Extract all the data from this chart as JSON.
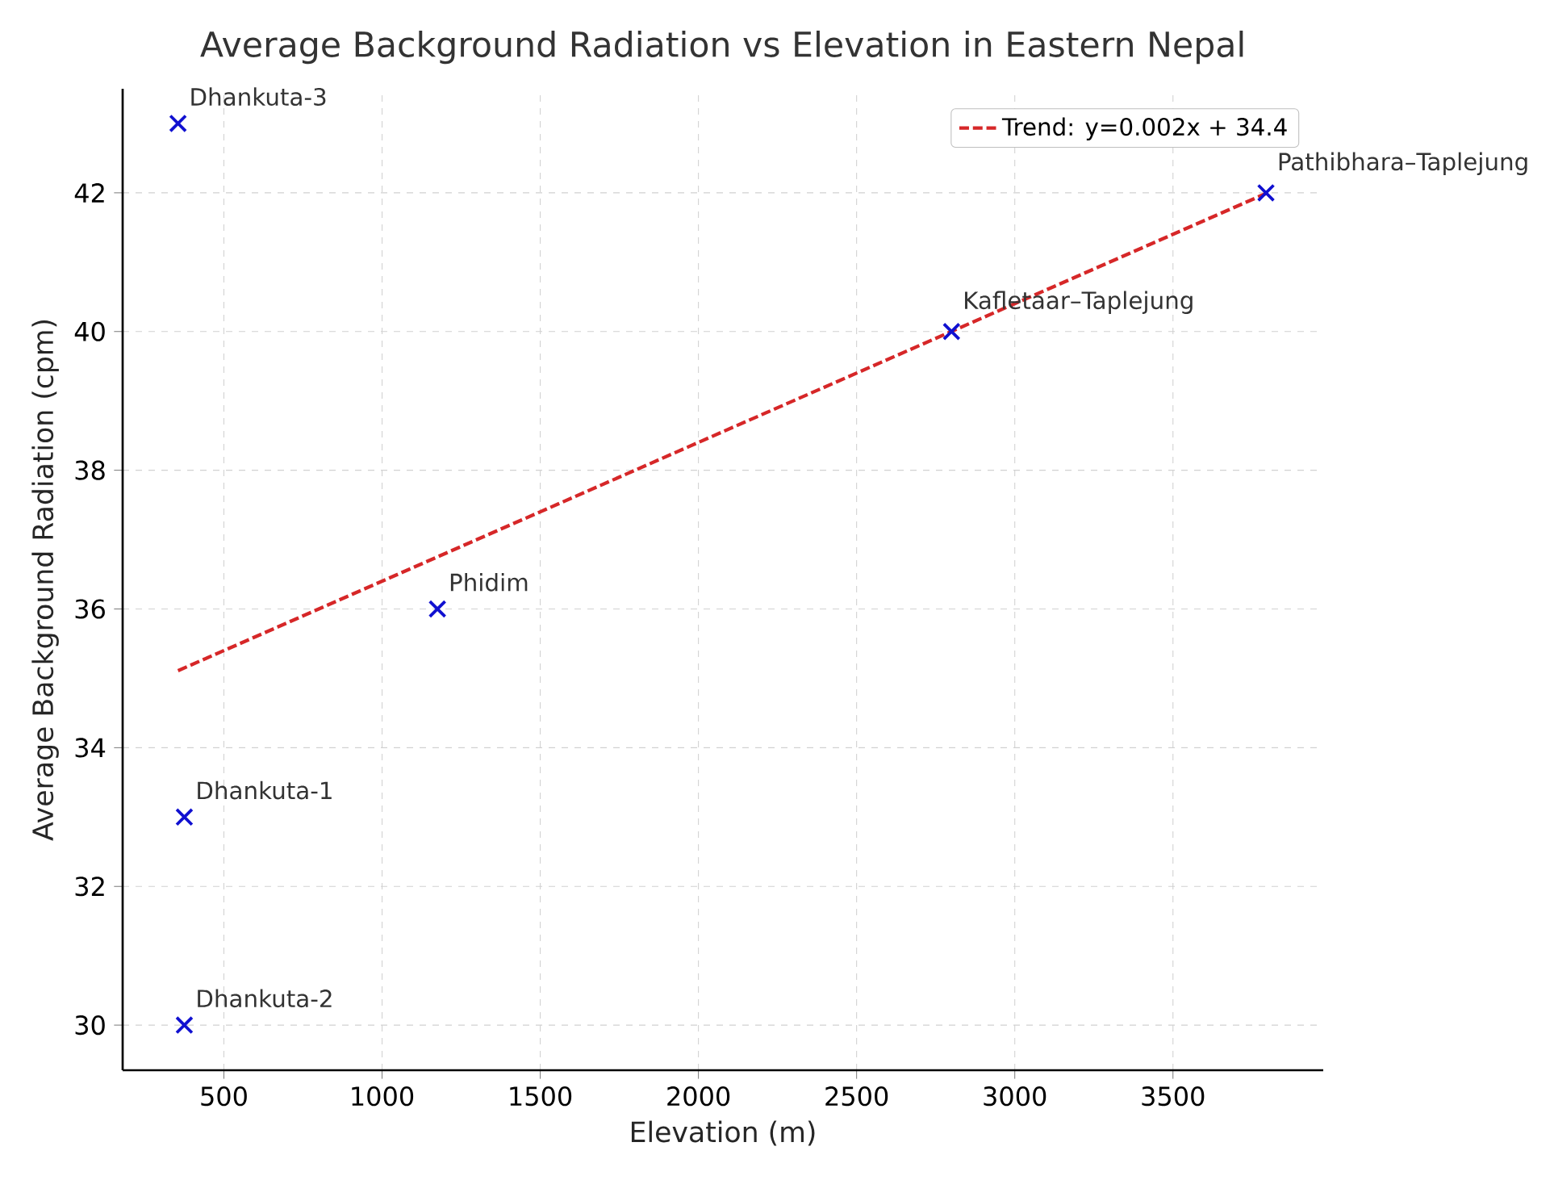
{
  "chart_data": {
    "type": "scatter",
    "title": "Average Background Radiation vs Elevation in Eastern Nepal",
    "xlabel": "Elevation (m)",
    "ylabel": "Average Background Radiation (cpm)",
    "xlim": [
      180,
      3975
    ],
    "ylim": [
      29.35,
      43.5
    ],
    "xticks": [
      500,
      1000,
      1500,
      2000,
      2500,
      3000,
      3500
    ],
    "yticks": [
      30,
      32,
      34,
      36,
      38,
      40,
      42
    ],
    "grid": true,
    "legend": "top right",
    "series": [
      {
        "color": "#1010d0",
        "marker": "cross",
        "x": [
          355,
          375,
          375,
          1175,
          2800,
          3794
        ],
        "values": [
          43,
          33,
          30,
          36,
          40,
          42
        ]
      },
      {
        "type": "line",
        "name": "Trend: y=0.002x + 34.4",
        "color": "#d62728",
        "marker": "none",
        "line_style": "dashed",
        "x": [
          355,
          3794
        ],
        "values": [
          35.11,
          41.99
        ]
      }
    ],
    "annotations": [
      {
        "text": "Dhankuta-3",
        "x": 355,
        "y": 43
      },
      {
        "text": "Dhankuta-1",
        "x": 375,
        "y": 33
      },
      {
        "text": "Dhankuta-2",
        "x": 375,
        "y": 30
      },
      {
        "text": "Phidim",
        "x": 1175,
        "y": 36
      },
      {
        "text": "Kafletaar–Taplejung",
        "x": 2800,
        "y": 40
      },
      {
        "text": "Pathibhara–Taplejung",
        "x": 3794,
        "y": 42
      }
    ]
  }
}
